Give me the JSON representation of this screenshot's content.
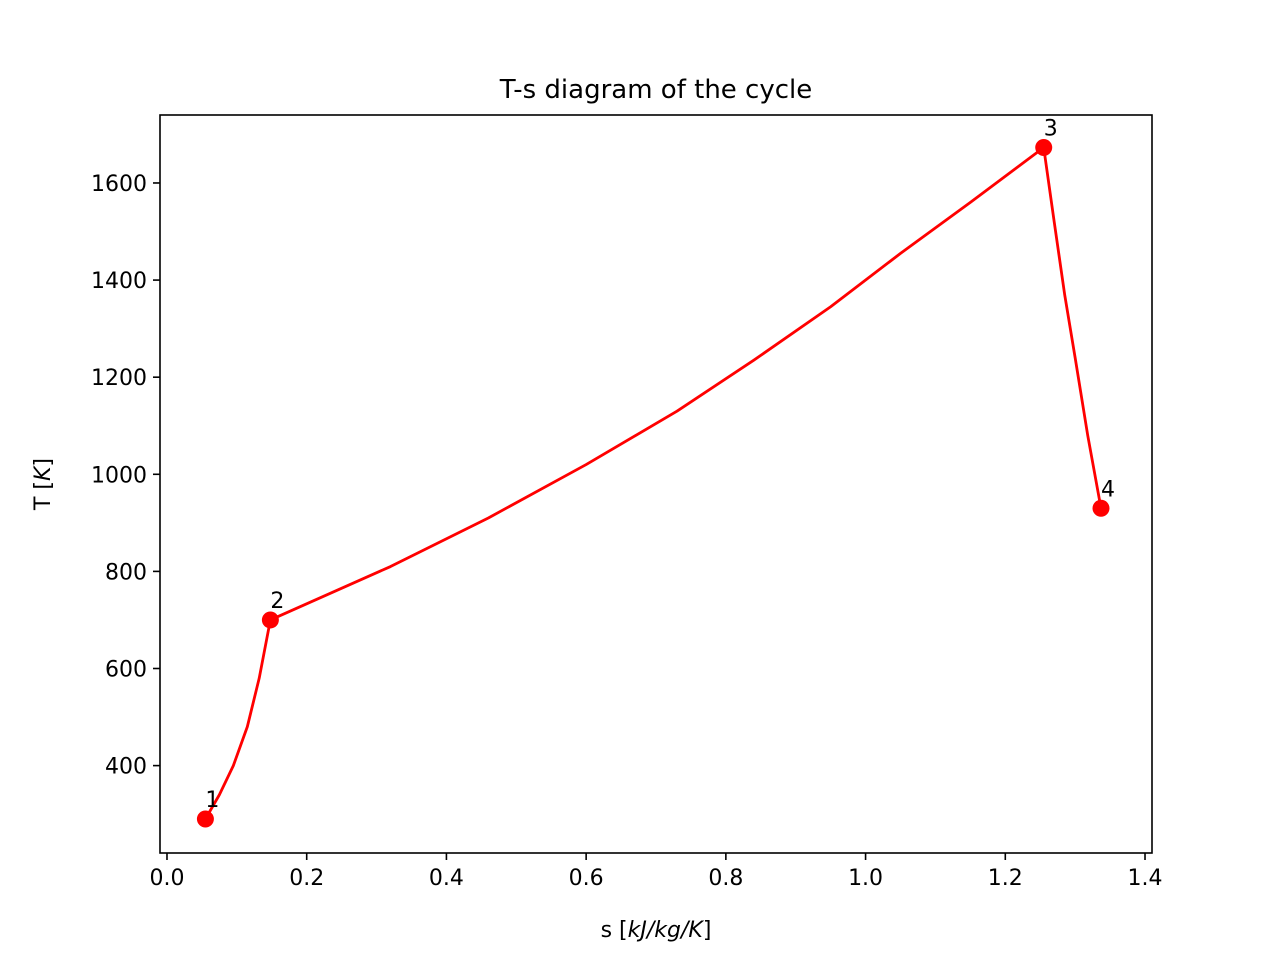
{
  "chart_data": {
    "type": "line",
    "title": "T-s diagram of the cycle",
    "xlabel_prefix": "s [",
    "xlabel_unit": "kJ/kg/K",
    "xlabel_suffix": "]",
    "ylabel_prefix": "T [",
    "ylabel_unit": "K",
    "ylabel_suffix": "]",
    "xlim": [
      -0.01,
      1.41
    ],
    "ylim": [
      220,
      1740
    ],
    "xticks": [
      0.0,
      0.2,
      0.4,
      0.6,
      0.8,
      1.0,
      1.2,
      1.4
    ],
    "xtick_labels": [
      "0.0",
      "0.2",
      "0.4",
      "0.6",
      "0.8",
      "1.0",
      "1.2",
      "1.4"
    ],
    "yticks": [
      400,
      600,
      800,
      1000,
      1200,
      1400,
      1600
    ],
    "ytick_labels": [
      "400",
      "600",
      "800",
      "1000",
      "1200",
      "1400",
      "1600"
    ],
    "grid": false,
    "line_color": "#ff0000",
    "series": [
      {
        "values": [
          {
            "s": 0.055,
            "T": 290
          },
          {
            "s": 0.075,
            "T": 340
          },
          {
            "s": 0.095,
            "T": 400
          },
          {
            "s": 0.115,
            "T": 480
          },
          {
            "s": 0.132,
            "T": 580
          },
          {
            "s": 0.148,
            "T": 700
          },
          {
            "s": 0.32,
            "T": 810
          },
          {
            "s": 0.46,
            "T": 910
          },
          {
            "s": 0.6,
            "T": 1020
          },
          {
            "s": 0.73,
            "T": 1130
          },
          {
            "s": 0.84,
            "T": 1235
          },
          {
            "s": 0.95,
            "T": 1345
          },
          {
            "s": 1.05,
            "T": 1455
          },
          {
            "s": 1.15,
            "T": 1560
          },
          {
            "s": 1.255,
            "T": 1673
          },
          {
            "s": 1.27,
            "T": 1520
          },
          {
            "s": 1.285,
            "T": 1370
          },
          {
            "s": 1.3,
            "T": 1240
          },
          {
            "s": 1.318,
            "T": 1080
          },
          {
            "s": 1.337,
            "T": 930
          }
        ]
      }
    ],
    "state_points": [
      {
        "label": "1",
        "s": 0.055,
        "T": 290
      },
      {
        "label": "2",
        "s": 0.148,
        "T": 700
      },
      {
        "label": "3",
        "s": 1.255,
        "T": 1673
      },
      {
        "label": "4",
        "s": 1.337,
        "T": 930
      }
    ]
  }
}
